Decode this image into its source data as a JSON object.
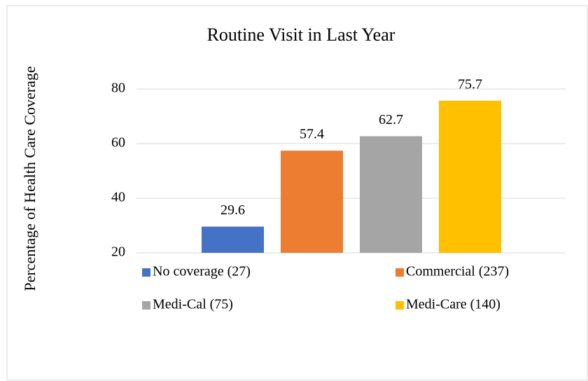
{
  "chart_data": {
    "type": "bar",
    "title": "Routine Visit in Last Year",
    "y_label": "Percentage of Health Care Coverage",
    "categories": [
      null
    ],
    "series": [
      {
        "name": "No coverage (27)",
        "color": "#4472c4",
        "values": [
          29.6
        ]
      },
      {
        "name": "Commercial (237)",
        "color": "#ed7d31",
        "values": [
          57.4
        ]
      },
      {
        "name": "Medi-Cal (75)",
        "color": "#a5a5a5",
        "values": [
          62.7
        ]
      },
      {
        "name": "Medi-Care (140)",
        "color": "#ffc000",
        "values": [
          75.7
        ]
      }
    ],
    "ylim": [
      20,
      85
    ],
    "yticks": [
      20,
      40,
      60,
      80
    ],
    "grid": true,
    "legend": "bottom"
  }
}
